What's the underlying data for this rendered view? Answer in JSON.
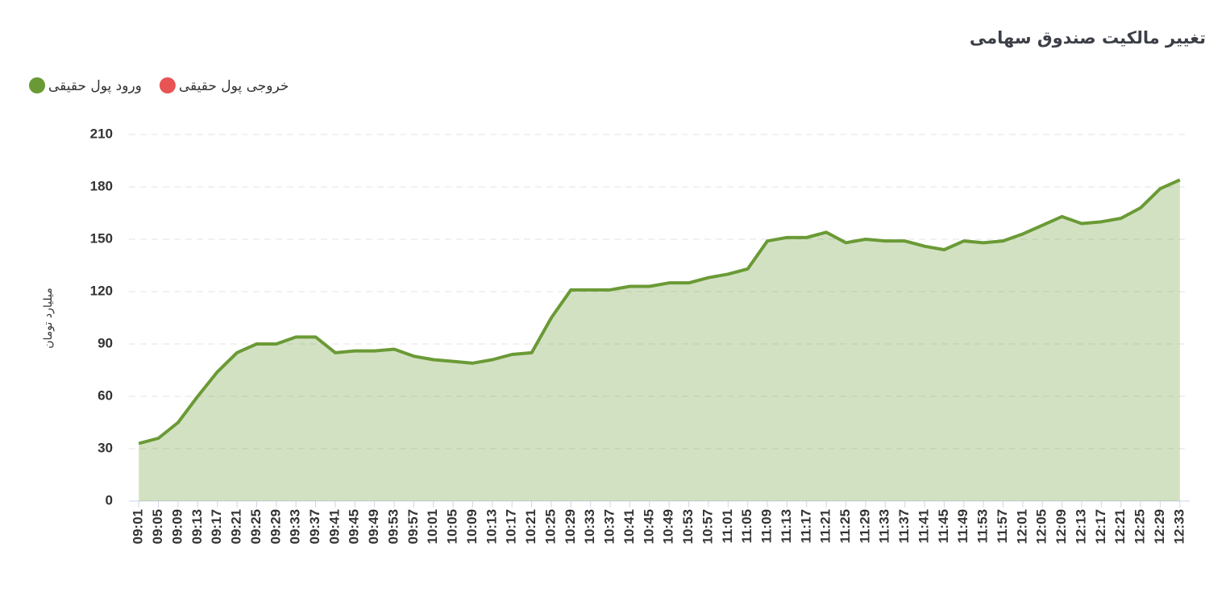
{
  "chart_data": {
    "type": "area",
    "title": "تغییر مالکیت صندوق سهامی",
    "y_label": "میلیارد تومان",
    "categories": [
      "09:01",
      "09:05",
      "09:09",
      "09:13",
      "09:17",
      "09:21",
      "09:25",
      "09:29",
      "09:33",
      "09:37",
      "09:41",
      "09:45",
      "09:49",
      "09:53",
      "09:57",
      "10:01",
      "10:05",
      "10:09",
      "10:13",
      "10:17",
      "10:21",
      "10:25",
      "10:29",
      "10:33",
      "10:37",
      "10:41",
      "10:45",
      "10:49",
      "10:53",
      "10:57",
      "11:01",
      "11:05",
      "11:09",
      "11:13",
      "11:17",
      "11:21",
      "11:25",
      "11:29",
      "11:33",
      "11:37",
      "11:41",
      "11:45",
      "11:49",
      "11:53",
      "11:57",
      "12:01",
      "12:05",
      "12:09",
      "12:13",
      "12:17",
      "12:21",
      "12:25",
      "12:29",
      "12:33"
    ],
    "series": [
      {
        "name": "ورود پول حقیقی",
        "color": "#6a9a35",
        "values": [
          33,
          36,
          45,
          60,
          74,
          85,
          90,
          90,
          94,
          94,
          85,
          86,
          86,
          87,
          83,
          81,
          80,
          79,
          81,
          84,
          85,
          105,
          121,
          121,
          121,
          123,
          123,
          125,
          125,
          128,
          130,
          133,
          149,
          151,
          151,
          154,
          148,
          150,
          149,
          149,
          146,
          144,
          149,
          148,
          149,
          153,
          158,
          163,
          159,
          160,
          162,
          168,
          179,
          184
        ]
      },
      {
        "name": "خروجی پول حقیقی",
        "color": "#e85454",
        "values": [
          null,
          null,
          null,
          null,
          null,
          null,
          null,
          null,
          null,
          null,
          null,
          null,
          null,
          null,
          null,
          null,
          null,
          null,
          null,
          null,
          null,
          null,
          null,
          null,
          null,
          null,
          null,
          null,
          null,
          null,
          null,
          null,
          null,
          null,
          null,
          null,
          null,
          null,
          null,
          null,
          null,
          null,
          null,
          null,
          null,
          null,
          null,
          null,
          null,
          null,
          null,
          null,
          null,
          null
        ]
      }
    ],
    "ylim": [
      0,
      210
    ],
    "yticks": [
      0,
      30,
      60,
      90,
      120,
      150,
      180,
      210
    ],
    "grid": true
  }
}
